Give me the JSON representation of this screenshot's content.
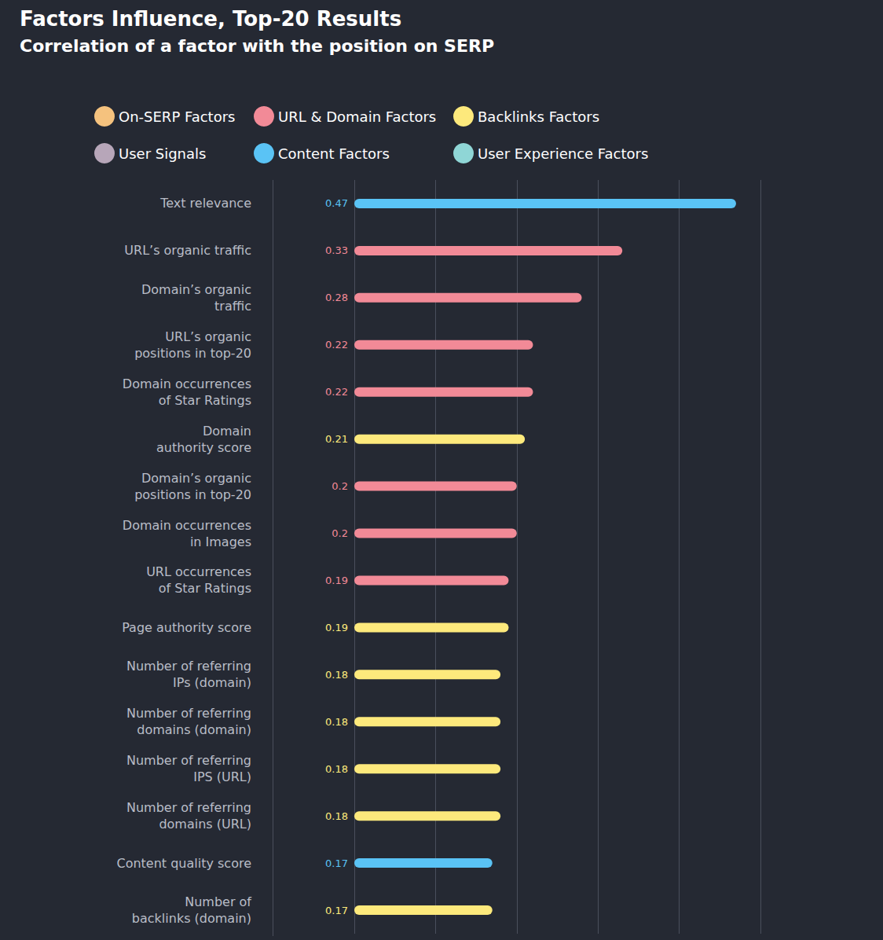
{
  "chart_data": {
    "type": "bar",
    "title": "Factors Influence, Top-20 Results",
    "subtitle": "Correlation of a factor with the position on SERP",
    "orientation": "horizontal",
    "stacked": true,
    "data_labels": true,
    "tick_labels": false,
    "grid": true,
    "legend": "top-left",
    "xlim": [
      0,
      0.5
    ],
    "xticks": [
      0,
      0.1,
      0.2,
      0.3,
      0.4,
      0.5
    ],
    "categories": [
      "Text relevance",
      "URL’s organic traffic",
      "Domain’s organic\ntraffic",
      "URL’s organic\npositions in top-20",
      "Domain occurrences\nof Star Ratings",
      "Domain\nauthority score",
      "Domain’s organic\npositions in top-20",
      "Domain occurrences\nin Images",
      "URL occurrences\nof Star Ratings",
      "Page authority score",
      "Number of referring\nIPs (domain)",
      "Number of referring\ndomains (domain)",
      "Number of referring\nIPS (URL)",
      "Number of referring\ndomains (URL)",
      "Content quality score",
      "Number of\nbacklinks (domain)"
    ],
    "series": [
      {
        "name": "On-SERP Factors",
        "color": "#f5c27e",
        "values": [
          null,
          null,
          null,
          null,
          null,
          null,
          null,
          null,
          null,
          null,
          null,
          null,
          null,
          null,
          null,
          null
        ]
      },
      {
        "name": "User Signals",
        "color": "#b7a6b9",
        "values": [
          null,
          null,
          null,
          null,
          null,
          null,
          null,
          null,
          null,
          null,
          null,
          null,
          null,
          null,
          null,
          null
        ]
      },
      {
        "name": "URL & Domain Factors",
        "color": "#f28a97",
        "values": [
          null,
          0.33,
          0.28,
          0.22,
          0.22,
          null,
          0.2,
          0.2,
          0.19,
          null,
          null,
          null,
          null,
          null,
          null,
          null
        ]
      },
      {
        "name": "Content Factors",
        "color": "#5ac3f5",
        "values": [
          0.47,
          null,
          null,
          null,
          null,
          null,
          null,
          null,
          null,
          null,
          null,
          null,
          null,
          null,
          0.17,
          null
        ]
      },
      {
        "name": "Backlinks Factors",
        "color": "#fde97c",
        "values": [
          null,
          null,
          null,
          null,
          null,
          0.21,
          null,
          null,
          null,
          0.19,
          0.18,
          0.18,
          0.18,
          0.18,
          null,
          0.17
        ]
      },
      {
        "name": "User Experience Factors",
        "color": "#8fd6d6",
        "values": [
          null,
          null,
          null,
          null,
          null,
          null,
          null,
          null,
          null,
          null,
          null,
          null,
          null,
          null,
          null,
          null
        ]
      }
    ]
  }
}
